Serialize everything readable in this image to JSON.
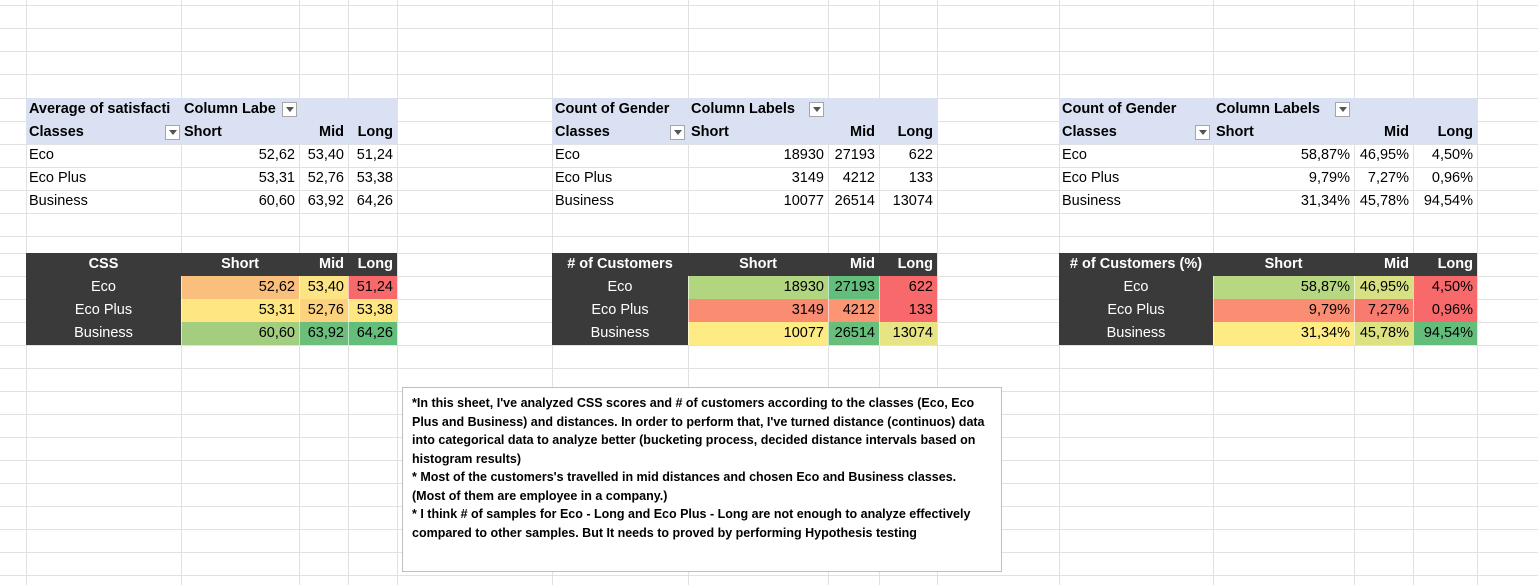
{
  "pivot1": {
    "title": "Average of satisfacti",
    "col_labels": "Column Labe",
    "row_header": "Classes",
    "cols": [
      "Short",
      "Mid",
      "Long"
    ],
    "rows": [
      {
        "label": "Eco",
        "values": [
          "52,62",
          "53,40",
          "51,24"
        ]
      },
      {
        "label": "Eco Plus",
        "values": [
          "53,31",
          "52,76",
          "53,38"
        ]
      },
      {
        "label": "Business",
        "values": [
          "60,60",
          "63,92",
          "64,26"
        ]
      }
    ]
  },
  "pivot2": {
    "title": "Count of Gender",
    "col_labels": "Column Labels",
    "row_header": "Classes",
    "cols": [
      "Short",
      "Mid",
      "Long"
    ],
    "rows": [
      {
        "label": "Eco",
        "values": [
          "18930",
          "27193",
          "622"
        ]
      },
      {
        "label": "Eco Plus",
        "values": [
          "3149",
          "4212",
          "133"
        ]
      },
      {
        "label": "Business",
        "values": [
          "10077",
          "26514",
          "13074"
        ]
      }
    ]
  },
  "pivot3": {
    "title": "Count of Gender",
    "col_labels": "Column Labels",
    "row_header": "Classes",
    "cols": [
      "Short",
      "Mid",
      "Long"
    ],
    "rows": [
      {
        "label": "Eco",
        "values": [
          "58,87%",
          "46,95%",
          "4,50%"
        ]
      },
      {
        "label": "Eco Plus",
        "values": [
          "9,79%",
          "7,27%",
          "0,96%"
        ]
      },
      {
        "label": "Business",
        "values": [
          "31,34%",
          "45,78%",
          "94,54%"
        ]
      }
    ]
  },
  "heat1": {
    "title": "CSS",
    "cols": [
      "Short",
      "Mid",
      "Long"
    ],
    "rows": [
      {
        "label": "Eco",
        "values": [
          "52,62",
          "53,40",
          "51,24"
        ],
        "colors": [
          "#fbbf7d",
          "#fce383",
          "#f8696b"
        ]
      },
      {
        "label": "Eco Plus",
        "values": [
          "53,31",
          "52,76",
          "53,38"
        ],
        "colors": [
          "#fee783",
          "#fdd27f",
          "#fee783"
        ]
      },
      {
        "label": "Business",
        "values": [
          "60,60",
          "63,92",
          "64,26"
        ],
        "colors": [
          "#a3ce7f",
          "#6bbf7b",
          "#63be7b"
        ]
      }
    ]
  },
  "heat2": {
    "title": "# of Customers",
    "cols": [
      "Short",
      "Mid",
      "Long"
    ],
    "rows": [
      {
        "label": "Eco",
        "values": [
          "18930",
          "27193",
          "622"
        ],
        "colors": [
          "#b2d580",
          "#63be7b",
          "#f8696b"
        ]
      },
      {
        "label": "Eco Plus",
        "values": [
          "3149",
          "4212",
          "133"
        ],
        "colors": [
          "#fa8c72",
          "#fb9574",
          "#f8696b"
        ]
      },
      {
        "label": "Business",
        "values": [
          "10077",
          "26514",
          "13074"
        ],
        "colors": [
          "#feeb84",
          "#67bf7b",
          "#e7e483"
        ]
      }
    ]
  },
  "heat3": {
    "title": "# of Customers (%)",
    "cols": [
      "Short",
      "Mid",
      "Long"
    ],
    "rows": [
      {
        "label": "Eco",
        "values": [
          "58,87%",
          "46,95%",
          "4,50%"
        ],
        "colors": [
          "#b7d780",
          "#d7e082",
          "#f8696b"
        ]
      },
      {
        "label": "Eco Plus",
        "values": [
          "9,79%",
          "7,27%",
          "0,96%"
        ],
        "colors": [
          "#fa8d72",
          "#f97b6f",
          "#f8696b"
        ]
      },
      {
        "label": "Business",
        "values": [
          "31,34%",
          "45,78%",
          "94,54%"
        ],
        "colors": [
          "#feeb84",
          "#dce182",
          "#63be7b"
        ]
      }
    ]
  },
  "note": {
    "p1": "*In this sheet, I've analyzed CSS scores and # of customers according to the classes (Eco, Eco Plus and Business) and distances. In order to perform that, I've turned distance (continuos) data into categorical data to analyze better (bucketing process, decided distance intervals based on histogram results)",
    "p2": "*  Most of the customers's travelled in mid distances and chosen Eco and Business classes. (Most of them are employee in a company.)",
    "p3": "* I think # of samples for Eco - Long and Eco Plus - Long are not enough to analyze effectively compared to other samples. But It needs to proved by performing Hypothesis testing"
  }
}
